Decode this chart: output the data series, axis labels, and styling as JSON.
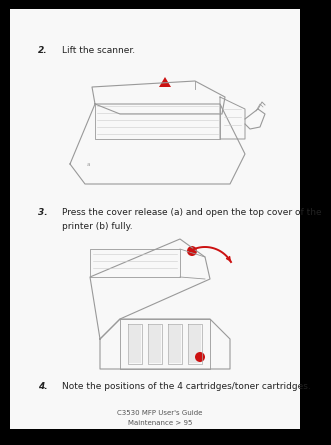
{
  "background_color": "#ffffff",
  "outer_shadow_color": "#000000",
  "page_color": "#f5f5f5",
  "text_color": "#222222",
  "gray_line": "#999999",
  "light_line": "#bbbbbb",
  "red_color": "#cc1111",
  "step2_num": "2.",
  "step2_text": "Lift the scanner.",
  "step3_num": "3.",
  "step3_line1": "Press the cover release (a) and open the top cover of the",
  "step3_line2": "printer (b) fully.",
  "step4_num": "4.",
  "step4_text": "Note the positions of the 4 cartridges/toner cartridges.",
  "footer_line1": "C3530 MFP User's Guide",
  "footer_line2": "Maintenance > 95",
  "font_size_body": 6.5,
  "font_size_footer": 5.0
}
